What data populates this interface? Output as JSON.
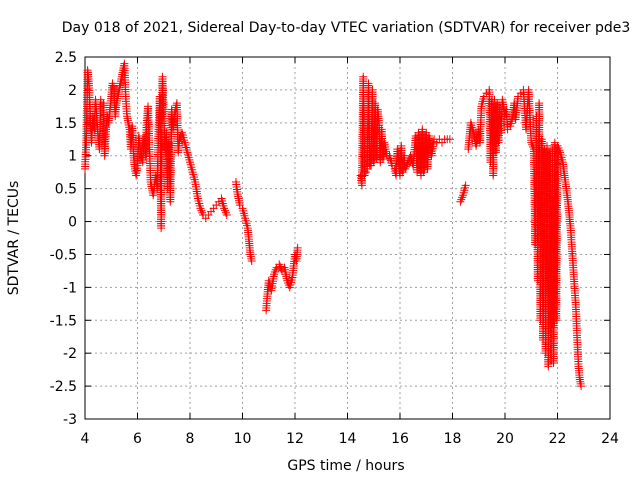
{
  "chart_data": {
    "type": "scatter",
    "title": "Day 018 of 2021, Sidereal Day-to-day VTEC variation (SDTVAR) for receiver pde3",
    "xlabel": "GPS time / hours",
    "ylabel": "SDTVAR / TECUs",
    "xlim": [
      4,
      24
    ],
    "ylim": [
      -3,
      2.5
    ],
    "x_ticks": [
      4,
      6,
      8,
      10,
      12,
      14,
      16,
      18,
      20,
      22,
      24
    ],
    "x_tick_labels": [
      "4",
      "6",
      "8",
      "10",
      "12",
      "14",
      "16",
      "18",
      "20",
      "22",
      "24"
    ],
    "y_ticks": [
      2.5,
      2,
      1.5,
      1,
      0.5,
      0,
      -0.5,
      -1,
      -1.5,
      -2,
      -2.5,
      -3
    ],
    "y_tick_labels": [
      "2.5",
      "2",
      "1.5",
      "1",
      "0.5",
      "0",
      "-0.5",
      "-1",
      "-1.5",
      "-2",
      "-2.5",
      "-3"
    ],
    "grid": true,
    "marker": "+",
    "series": [
      {
        "name": "SDTVAR",
        "color": "#ff0000",
        "segments": [
          [
            [
              4.0,
              0.8
            ],
            [
              4.05,
              1.2
            ],
            [
              4.1,
              2.3
            ],
            [
              4.15,
              2.1
            ],
            [
              4.2,
              1.6
            ],
            [
              4.25,
              1.2
            ],
            [
              4.3,
              1.6
            ],
            [
              4.35,
              1.4
            ],
            [
              4.4,
              1.85
            ],
            [
              4.5,
              1.3
            ],
            [
              4.55,
              1.1
            ],
            [
              4.6,
              1.85
            ],
            [
              4.7,
              1.8
            ],
            [
              4.75,
              1.0
            ],
            [
              4.8,
              1.4
            ],
            [
              4.85,
              1.6
            ],
            [
              4.9,
              1.5
            ],
            [
              5.0,
              1.9
            ],
            [
              5.05,
              2.1
            ],
            [
              5.1,
              2.05
            ],
            [
              5.15,
              1.6
            ],
            [
              5.2,
              1.8
            ],
            [
              5.3,
              2.0
            ],
            [
              5.4,
              2.2
            ],
            [
              5.5,
              2.4
            ],
            [
              5.55,
              1.9
            ],
            [
              5.6,
              1.6
            ],
            [
              5.7,
              1.4
            ],
            [
              5.75,
              1.1
            ],
            [
              5.8,
              1.45
            ],
            [
              5.85,
              1.0
            ],
            [
              5.9,
              0.8
            ],
            [
              5.95,
              0.7
            ],
            [
              6.0,
              0.85
            ],
            [
              6.05,
              1.3
            ],
            [
              6.1,
              1.1
            ],
            [
              6.2,
              0.9
            ],
            [
              6.25,
              1.3
            ],
            [
              6.3,
              1.0
            ],
            [
              6.35,
              1.5
            ],
            [
              6.4,
              1.75
            ],
            [
              6.45,
              1.2
            ],
            [
              6.5,
              0.6
            ],
            [
              6.6,
              0.4
            ],
            [
              6.7,
              0.7
            ],
            [
              6.75,
              0.5
            ],
            [
              6.8,
              1.4
            ],
            [
              6.85,
              1.9
            ],
            [
              6.9,
              -0.1
            ],
            [
              6.95,
              2.2
            ],
            [
              7.0,
              1.6
            ],
            [
              7.05,
              1.1
            ],
            [
              7.1,
              1.35
            ],
            [
              7.15,
              0.5
            ],
            [
              7.2,
              1.2
            ],
            [
              7.25,
              0.3
            ],
            [
              7.3,
              1.7
            ],
            [
              7.35,
              1.4
            ],
            [
              7.4,
              1.6
            ],
            [
              7.5,
              1.8
            ],
            [
              7.55,
              1.05
            ],
            [
              7.6,
              1.25
            ],
            [
              7.7,
              1.35
            ],
            [
              7.8,
              1.2
            ],
            [
              7.9,
              1.05
            ],
            [
              8.0,
              0.9
            ],
            [
              8.1,
              0.75
            ],
            [
              8.2,
              0.6
            ],
            [
              8.3,
              0.35
            ],
            [
              8.4,
              0.2
            ],
            [
              8.5,
              0.1
            ],
            [
              8.6,
              0.05
            ],
            [
              8.7,
              0.1
            ],
            [
              8.8,
              0.15
            ],
            [
              8.9,
              0.2
            ],
            [
              9.0,
              0.25
            ],
            [
              9.1,
              0.3
            ],
            [
              9.2,
              0.35
            ],
            [
              9.3,
              0.2
            ],
            [
              9.4,
              0.1
            ]
          ],
          [
            [
              9.75,
              0.6
            ],
            [
              9.8,
              0.45
            ],
            [
              9.85,
              0.35
            ],
            [
              9.9,
              0.25
            ],
            [
              10.0,
              0.2
            ],
            [
              10.1,
              0.05
            ],
            [
              10.2,
              -0.1
            ],
            [
              10.25,
              -0.3
            ],
            [
              10.3,
              -0.5
            ],
            [
              10.35,
              -0.6
            ]
          ],
          [
            [
              10.9,
              -1.35
            ],
            [
              10.95,
              -1.1
            ],
            [
              11.0,
              -0.9
            ],
            [
              11.1,
              -1.05
            ],
            [
              11.2,
              -0.8
            ],
            [
              11.3,
              -0.7
            ],
            [
              11.4,
              -0.65
            ],
            [
              11.5,
              -0.75
            ],
            [
              11.6,
              -0.7
            ],
            [
              11.7,
              -0.9
            ],
            [
              11.8,
              -1.0
            ],
            [
              11.9,
              -0.85
            ],
            [
              12.0,
              -0.5
            ],
            [
              12.05,
              -0.6
            ],
            [
              12.1,
              -0.4
            ]
          ],
          [
            [
              14.5,
              0.7
            ],
            [
              14.55,
              0.55
            ],
            [
              14.6,
              2.2
            ],
            [
              14.65,
              0.7
            ],
            [
              14.7,
              0.75
            ],
            [
              14.75,
              0.8
            ],
            [
              14.8,
              2.1
            ],
            [
              14.85,
              0.85
            ],
            [
              14.9,
              0.85
            ],
            [
              14.95,
              2.0
            ],
            [
              15.0,
              0.9
            ],
            [
              15.05,
              1.8
            ],
            [
              15.1,
              0.95
            ],
            [
              15.15,
              1.7
            ],
            [
              15.2,
              1.5
            ],
            [
              15.25,
              0.9
            ],
            [
              15.3,
              1.4
            ],
            [
              15.35,
              0.95
            ],
            [
              15.4,
              1.2
            ],
            [
              15.5,
              1.0
            ],
            [
              15.55,
              0.95
            ],
            [
              15.6,
              1.0
            ],
            [
              15.7,
              0.85
            ],
            [
              15.8,
              0.8
            ],
            [
              15.85,
              0.7
            ],
            [
              15.9,
              1.1
            ],
            [
              16.0,
              0.7
            ],
            [
              16.05,
              1.15
            ],
            [
              16.1,
              0.75
            ],
            [
              16.15,
              1.0
            ],
            [
              16.2,
              0.8
            ],
            [
              16.3,
              0.9
            ],
            [
              16.4,
              1.0
            ],
            [
              16.5,
              0.85
            ],
            [
              16.6,
              1.3
            ],
            [
              16.65,
              0.75
            ],
            [
              16.7,
              1.35
            ],
            [
              16.8,
              0.7
            ],
            [
              16.85,
              1.4
            ],
            [
              16.9,
              0.75
            ],
            [
              17.0,
              1.35
            ],
            [
              17.05,
              0.8
            ],
            [
              17.1,
              1.3
            ],
            [
              17.2,
              1.0
            ],
            [
              17.3,
              1.25
            ],
            [
              17.4,
              1.2
            ],
            [
              17.5,
              1.25
            ],
            [
              17.6,
              1.2
            ],
            [
              17.7,
              1.25
            ],
            [
              17.8,
              1.25
            ],
            [
              17.9,
              1.25
            ]
          ],
          [
            [
              18.3,
              0.3
            ],
            [
              18.4,
              0.4
            ],
            [
              18.5,
              0.55
            ]
          ],
          [
            [
              18.6,
              1.1
            ],
            [
              18.65,
              1.3
            ],
            [
              18.7,
              1.5
            ],
            [
              18.8,
              1.35
            ],
            [
              18.9,
              1.15
            ],
            [
              19.0,
              1.4
            ],
            [
              19.05,
              1.2
            ],
            [
              19.1,
              1.75
            ],
            [
              19.2,
              1.9
            ],
            [
              19.3,
              1.95
            ],
            [
              19.4,
              2.0
            ],
            [
              19.45,
              0.9
            ],
            [
              19.5,
              1.85
            ],
            [
              19.55,
              0.7
            ],
            [
              19.6,
              1.85
            ],
            [
              19.65,
              1.05
            ],
            [
              19.7,
              1.8
            ],
            [
              19.75,
              1.2
            ],
            [
              19.8,
              1.7
            ],
            [
              19.85,
              1.35
            ],
            [
              19.9,
              1.85
            ],
            [
              20.0,
              1.6
            ],
            [
              20.05,
              1.7
            ],
            [
              20.1,
              1.4
            ],
            [
              20.2,
              1.45
            ],
            [
              20.3,
              1.6
            ],
            [
              20.35,
              1.8
            ],
            [
              20.4,
              1.55
            ],
            [
              20.5,
              1.9
            ],
            [
              20.6,
              1.95
            ],
            [
              20.7,
              2.0
            ],
            [
              20.8,
              1.4
            ],
            [
              20.9,
              2.0
            ],
            [
              21.0,
              1.2
            ],
            [
              21.1,
              1.1
            ],
            [
              21.15,
              -0.35
            ],
            [
              21.2,
              1.6
            ],
            [
              21.25,
              -0.9
            ],
            [
              21.3,
              1.8
            ],
            [
              21.35,
              -1.5
            ],
            [
              21.4,
              1.25
            ],
            [
              21.45,
              -1.8
            ],
            [
              21.5,
              1.1
            ],
            [
              21.55,
              -2.0
            ],
            [
              21.6,
              1.15
            ],
            [
              21.65,
              -2.2
            ],
            [
              21.7,
              1.0
            ],
            [
              21.75,
              -1.6
            ],
            [
              21.8,
              1.1
            ],
            [
              21.85,
              -2.15
            ],
            [
              21.9,
              1.2
            ],
            [
              21.95,
              -1.5
            ],
            [
              22.0,
              1.15
            ],
            [
              22.1,
              1.05
            ],
            [
              22.2,
              0.9
            ],
            [
              22.3,
              0.6
            ],
            [
              22.4,
              0.3
            ],
            [
              22.5,
              -0.1
            ],
            [
              22.6,
              -0.7
            ],
            [
              22.7,
              -1.3
            ],
            [
              22.75,
              -1.8
            ],
            [
              22.8,
              -2.2
            ],
            [
              22.85,
              -2.4
            ],
            [
              22.9,
              -2.5
            ]
          ]
        ]
      }
    ]
  }
}
